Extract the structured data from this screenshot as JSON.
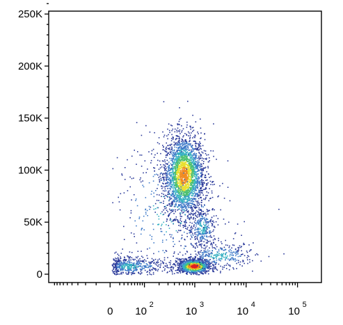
{
  "chart_data": {
    "type": "scatter",
    "style": "density-colored flow cytometry dot plot",
    "title": "",
    "xlabel": "",
    "ylabel": "",
    "x_scale": "biexponential (logicle)",
    "xlim": [
      -300,
      250000
    ],
    "ylim": [
      0,
      262144
    ],
    "grid": false,
    "legend": "none",
    "x_ticks": [
      {
        "value": 0,
        "base": "0",
        "exp": ""
      },
      {
        "value": 100,
        "base": "10",
        "exp": "2"
      },
      {
        "value": 1000,
        "base": "10",
        "exp": "3"
      },
      {
        "value": 10000,
        "base": "10",
        "exp": "4"
      },
      {
        "value": 100000,
        "base": "10",
        "exp": "5"
      }
    ],
    "y_ticks": [
      {
        "value": 0,
        "label": "0"
      },
      {
        "value": 50000,
        "label": "50K"
      },
      {
        "value": 100000,
        "label": "100K"
      },
      {
        "value": 150000,
        "label": "150K"
      },
      {
        "value": 200000,
        "label": "200K"
      },
      {
        "value": 250000,
        "label": "250K"
      }
    ],
    "density_colors": [
      "#2b3a9a",
      "#3f7bc9",
      "#36b0c2",
      "#4cc070",
      "#e8e030",
      "#f08a20",
      "#e0201e"
    ],
    "populations": [
      {
        "x_center": 600,
        "y_center": 95000,
        "x_spread_decades": 0.2,
        "y_spread": 20000,
        "weight": 0.5,
        "peak_density": "high"
      },
      {
        "x_center": 950,
        "y_center": 8000,
        "x_spread_decades": 0.16,
        "y_spread": 3500,
        "weight": 0.22,
        "peak_density": "very high"
      },
      {
        "x_center": 40,
        "y_center": 8000,
        "x_spread_decades": 0.45,
        "y_spread": 4500,
        "weight": 0.1,
        "peak_density": "low"
      },
      {
        "x_center": 1400,
        "y_center": 45000,
        "x_spread_decades": 0.14,
        "y_spread": 10000,
        "weight": 0.06,
        "peak_density": "low"
      },
      {
        "x_center": 3000,
        "y_center": 18000,
        "x_spread_decades": 0.35,
        "y_spread": 6000,
        "weight": 0.06,
        "peak_density": "low"
      },
      {
        "x_center": 300,
        "y_center": 60000,
        "x_spread_decades": 0.6,
        "y_spread": 35000,
        "weight": 0.06,
        "peak_density": "low"
      }
    ]
  }
}
